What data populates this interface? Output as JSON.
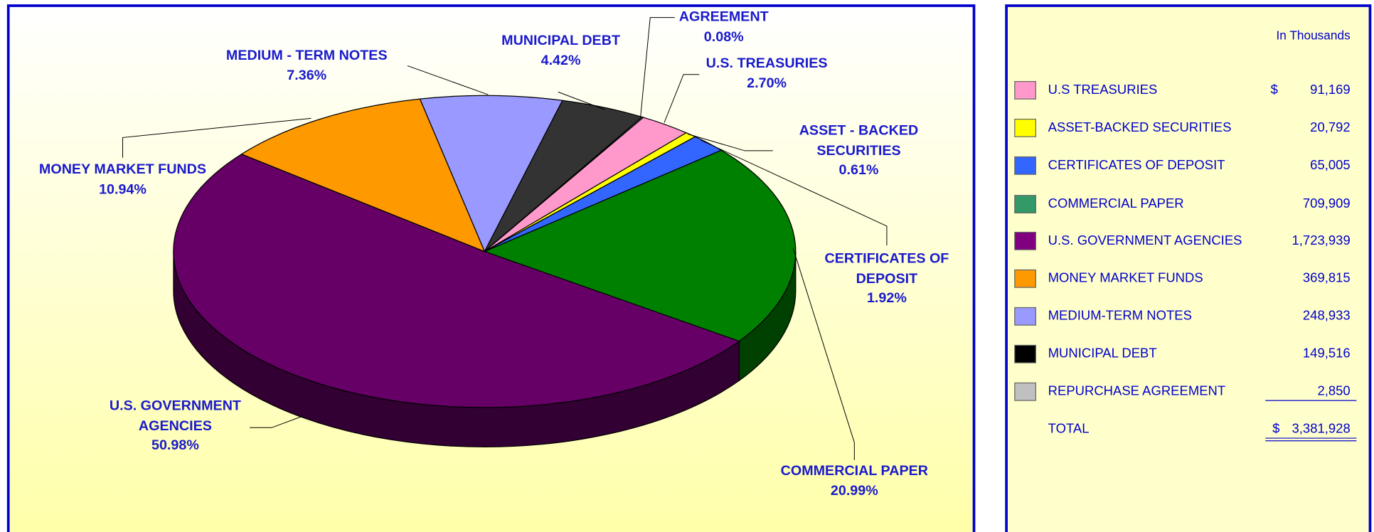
{
  "chart_data": {
    "type": "pie",
    "categories": [
      "MEDIUM - TERM NOTES",
      "MUNICIPAL DEBT",
      "AGREEMENT",
      "U.S. TREASURIES",
      "ASSET - BACKED SECURITIES",
      "CERTIFICATES OF DEPOSIT",
      "COMMERCIAL PAPER",
      "U.S. GOVERNMENT AGENCIES",
      "MONEY MARKET FUNDS"
    ],
    "values": [
      7.36,
      4.42,
      0.08,
      2.7,
      0.61,
      1.92,
      20.99,
      50.98,
      10.94
    ],
    "value_labels": [
      "7.36%",
      "4.42%",
      "0.08%",
      "2.70%",
      "0.61%",
      "1.92%",
      "20.99%",
      "50.98%",
      "10.94%"
    ],
    "colors": [
      "#9999ff",
      "#333333",
      "#c0c0c0",
      "#ff99cc",
      "#ffff00",
      "#3366ff",
      "#008000",
      "#660066",
      "#ff9900"
    ]
  },
  "table": {
    "header": "In Thousands",
    "rows": [
      {
        "name": "U.S TREASURIES",
        "currency": "$",
        "amount": "91,169",
        "color": "#ff99cc"
      },
      {
        "name": "ASSET-BACKED SECURITIES",
        "amount": "20,792",
        "color": "#ffff00"
      },
      {
        "name": "CERTIFICATES OF DEPOSIT",
        "amount": "65,005",
        "color": "#3366ff"
      },
      {
        "name": "COMMERCIAL PAPER",
        "amount": "709,909",
        "color": "#339966"
      },
      {
        "name": "U.S. GOVERNMENT AGENCIES",
        "amount": "1,723,939",
        "color": "#800080"
      },
      {
        "name": "MONEY MARKET FUNDS",
        "amount": "369,815",
        "color": "#ff9900"
      },
      {
        "name": "MEDIUM-TERM NOTES",
        "amount": "248,933",
        "color": "#9999ff"
      },
      {
        "name": "MUNICIPAL DEBT",
        "amount": "149,516",
        "color": "#000000"
      },
      {
        "name": "REPURCHASE AGREEMENT",
        "amount": "2,850",
        "color": "#c0c0c0"
      }
    ],
    "total": {
      "name": "TOTAL",
      "currency": "$",
      "amount": "3,381,928"
    }
  }
}
